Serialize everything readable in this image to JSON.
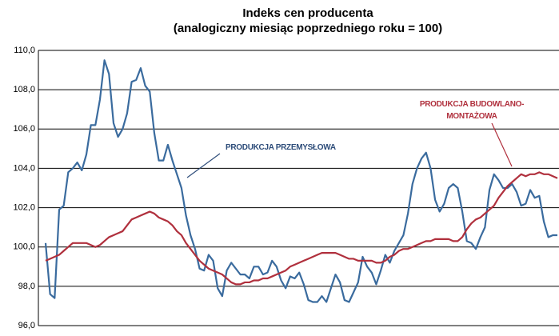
{
  "chart_data": {
    "type": "line",
    "title": [
      "Indeks cen producenta",
      "(analogiczny miesiąc poprzedniego roku = 100)"
    ],
    "ylim": [
      96,
      110
    ],
    "yticks": [
      {
        "value": 96,
        "label": "96,0"
      },
      {
        "value": 98,
        "label": "98,0"
      },
      {
        "value": 100,
        "label": "100,0"
      },
      {
        "value": 102,
        "label": "102,0"
      },
      {
        "value": 104,
        "label": "104,0"
      },
      {
        "value": 106,
        "label": "106,0"
      },
      {
        "value": 108,
        "label": "108,0"
      },
      {
        "value": 110,
        "label": "110,0"
      }
    ],
    "grid": true,
    "series": [
      {
        "name": "PRODUKCJA PRZEMYSŁOWA",
        "color": "#3a6b9e",
        "values": [
          100.2,
          97.6,
          97.4,
          101.9,
          102.1,
          103.8,
          104.0,
          104.3,
          103.9,
          104.7,
          106.2,
          106.2,
          107.5,
          109.5,
          108.8,
          106.3,
          105.6,
          106.0,
          106.8,
          108.4,
          108.5,
          109.1,
          108.2,
          107.9,
          105.8,
          104.4,
          104.4,
          105.2,
          104.4,
          103.7,
          103.0,
          101.6,
          100.6,
          99.9,
          98.9,
          98.8,
          99.6,
          99.3,
          97.9,
          97.5,
          98.8,
          99.2,
          98.9,
          98.6,
          98.6,
          98.4,
          99.0,
          99.0,
          98.6,
          98.7,
          99.3,
          99.0,
          98.3,
          97.9,
          98.5,
          98.4,
          98.7,
          98.1,
          97.3,
          97.2,
          97.2,
          97.5,
          97.2,
          97.9,
          98.6,
          98.2,
          97.3,
          97.2,
          97.7,
          98.2,
          99.5,
          99.0,
          98.7,
          98.1,
          98.8,
          99.6,
          99.2,
          99.8,
          100.2,
          100.6,
          101.7,
          103.2,
          104.0,
          104.5,
          104.8,
          104.0,
          102.4,
          101.8,
          102.2,
          103.0,
          103.2,
          103.0,
          101.8,
          100.3,
          100.2,
          99.9,
          100.5,
          101.0,
          102.9,
          103.7,
          103.4,
          103.0,
          103.0,
          103.2,
          102.8,
          102.1,
          102.2,
          102.9,
          102.5,
          102.6,
          101.3,
          100.5,
          100.6,
          100.6
        ]
      },
      {
        "name": "PRODUKCJA BUDOWLANO-MONTAŻOWA",
        "color": "#b0303d",
        "values": [
          99.3,
          99.4,
          99.5,
          99.6,
          99.8,
          100.0,
          100.2,
          100.2,
          100.2,
          100.2,
          100.1,
          100.0,
          100.1,
          100.3,
          100.5,
          100.6,
          100.7,
          100.8,
          101.1,
          101.4,
          101.5,
          101.6,
          101.7,
          101.8,
          101.7,
          101.5,
          101.4,
          101.3,
          101.1,
          100.8,
          100.6,
          100.2,
          99.9,
          99.6,
          99.3,
          99.1,
          98.9,
          98.8,
          98.7,
          98.6,
          98.4,
          98.2,
          98.1,
          98.1,
          98.2,
          98.2,
          98.3,
          98.3,
          98.4,
          98.4,
          98.5,
          98.6,
          98.7,
          98.8,
          99.0,
          99.1,
          99.2,
          99.3,
          99.4,
          99.5,
          99.6,
          99.7,
          99.7,
          99.7,
          99.7,
          99.6,
          99.5,
          99.4,
          99.4,
          99.3,
          99.3,
          99.3,
          99.3,
          99.2,
          99.2,
          99.3,
          99.5,
          99.6,
          99.8,
          99.9,
          99.9,
          100.0,
          100.1,
          100.2,
          100.3,
          100.3,
          100.4,
          100.4,
          100.4,
          100.4,
          100.3,
          100.3,
          100.5,
          100.9,
          101.2,
          101.4,
          101.5,
          101.7,
          101.9,
          102.1,
          102.5,
          102.8,
          103.1,
          103.3,
          103.5,
          103.7,
          103.6,
          103.7,
          103.7,
          103.8,
          103.7,
          103.7,
          103.6,
          103.5
        ]
      }
    ],
    "annotations": [
      "PRODUKCJA PRZEMYSŁOWA",
      "PRODUKCJA BUDOWLANO-",
      "MONTAŻOWA"
    ]
  }
}
